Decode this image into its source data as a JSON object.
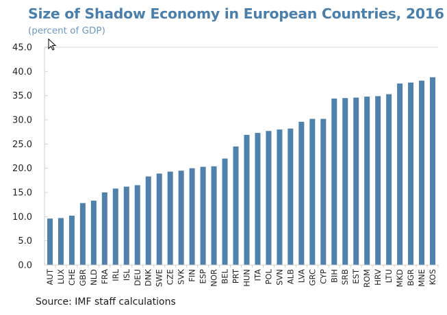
{
  "chart_data": {
    "type": "bar",
    "title": "Size of Shadow Economy in European Countries, 2016",
    "subtitle": "(percent of GDP)",
    "xlabel": "",
    "ylabel": "",
    "source": "Source: IMF staff calculations",
    "ylim": [
      0,
      45
    ],
    "yticks": [
      0,
      5,
      10,
      15,
      20,
      25,
      30,
      35,
      40,
      45
    ],
    "ytick_labels": [
      "0.0",
      "5.0",
      "10.0",
      "15.0",
      "20.0",
      "25.0",
      "30.0",
      "35.0",
      "40.0",
      "45.0"
    ],
    "grid": false,
    "legend": "none",
    "bar_color": "#4f81ab",
    "categories": [
      "AUT",
      "LUX",
      "CHE",
      "GBR",
      "NLD",
      "FRA",
      "IRL",
      "ISL",
      "DEU",
      "DNK",
      "SWE",
      "CZE",
      "SVK",
      "FIN",
      "ESP",
      "NOR",
      "BEL",
      "PRT",
      "HUN",
      "ITA",
      "POL",
      "SVN",
      "ALB",
      "LVA",
      "GRC",
      "CYP",
      "BIH",
      "SRB",
      "EST",
      "ROM",
      "HRV",
      "LTU",
      "MKD",
      "BGR",
      "MNE",
      "KOS"
    ],
    "values": [
      9.6,
      9.7,
      10.2,
      12.8,
      13.3,
      15.0,
      15.8,
      16.2,
      16.5,
      18.3,
      18.9,
      19.3,
      19.5,
      20.0,
      20.3,
      20.4,
      22.0,
      24.5,
      26.9,
      27.3,
      27.7,
      28.0,
      28.2,
      29.6,
      30.2,
      30.2,
      34.4,
      34.5,
      34.6,
      34.8,
      34.9,
      35.3,
      37.5,
      37.7,
      38.1,
      38.8
    ]
  }
}
